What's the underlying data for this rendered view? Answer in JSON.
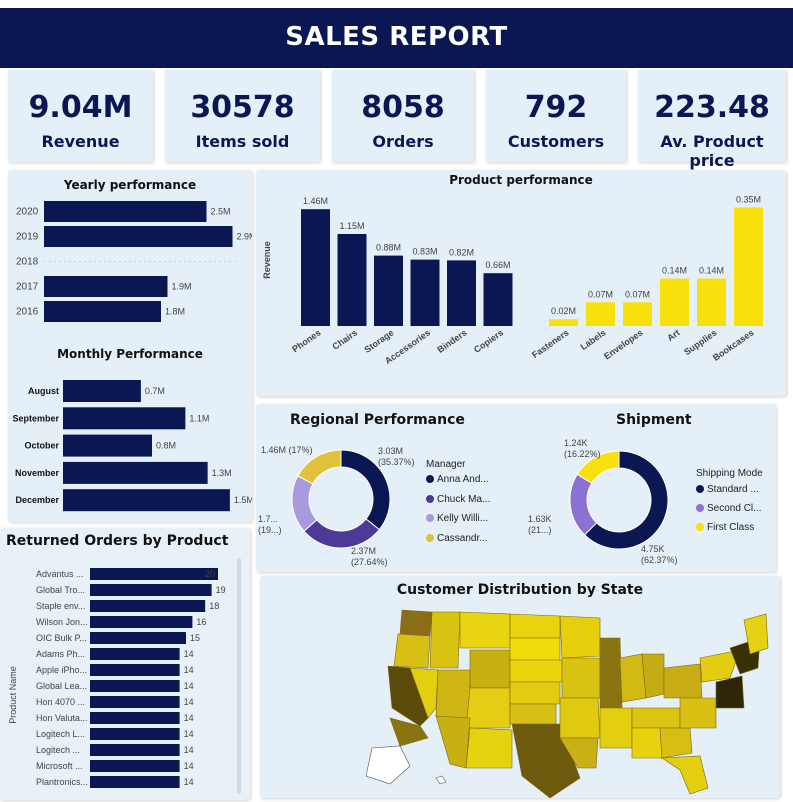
{
  "header": {
    "title": "SALES REPORT"
  },
  "kpis": [
    {
      "value": "9.04M",
      "label": "Revenue"
    },
    {
      "value": "30578",
      "label": "Items sold"
    },
    {
      "value": "8058",
      "label": "Orders"
    },
    {
      "value": "792",
      "label": "Customers"
    },
    {
      "value": "223.48",
      "label": "Av. Product price"
    }
  ],
  "yearly": {
    "title": "Yearly performance"
  },
  "monthly": {
    "title": "Monthly Performance"
  },
  "product": {
    "title": "Product performance"
  },
  "regional": {
    "title": "Regional Performance",
    "legend_title": "Manager"
  },
  "shipment": {
    "title": "Shipment",
    "legend_title": "Shipping Mode"
  },
  "returns": {
    "title": "Returned Orders by Product"
  },
  "map": {
    "title": "Customer Distribution by State"
  },
  "colors": {
    "navy": "#0b1752",
    "yellow": "#f7e00e",
    "purple_dark": "#4c3a96",
    "purple_light": "#a99ae0",
    "gold": "#e2c13a",
    "mustard": "#d8bf16"
  },
  "chart_data": [
    {
      "id": "yearly",
      "type": "bar",
      "orientation": "horizontal",
      "title": "Yearly performance",
      "categories": [
        "2020",
        "2019",
        "2018",
        "2017",
        "2016"
      ],
      "values": [
        2.5,
        2.9,
        null,
        1.9,
        1.8
      ],
      "value_labels": [
        "2.5M",
        "2.9M",
        "",
        "1.9M",
        "1.8M"
      ],
      "xlim": [
        0,
        3.0
      ]
    },
    {
      "id": "monthly",
      "type": "bar",
      "orientation": "horizontal",
      "title": "Monthly Performance",
      "categories": [
        "August",
        "September",
        "October",
        "November",
        "December"
      ],
      "values": [
        0.7,
        1.1,
        0.8,
        1.3,
        1.5
      ],
      "value_labels": [
        "0.7M",
        "1.1M",
        "0.8M",
        "1.3M",
        "1.5M"
      ],
      "xlim": [
        0,
        1.6
      ]
    },
    {
      "id": "product",
      "type": "bar",
      "title": "Product performance",
      "ylabel": "Revenue",
      "series": [
        {
          "categories": [
            "Phones",
            "Chairs",
            "Storage",
            "Accessories",
            "Binders",
            "Copiers"
          ],
          "values": [
            1.46,
            1.15,
            0.88,
            0.83,
            0.82,
            0.66
          ],
          "value_labels": [
            "1.46M",
            "1.15M",
            "0.88M",
            "0.83M",
            "0.82M",
            "0.66M"
          ],
          "ylim": [
            0,
            1.5
          ]
        },
        {
          "categories": [
            "Fasteners",
            "Labels",
            "Envelopes",
            "Art",
            "Supplies",
            "Bookcases"
          ],
          "values": [
            0.02,
            0.07,
            0.07,
            0.14,
            0.14,
            0.35
          ],
          "value_labels": [
            "0.02M",
            "0.07M",
            "0.07M",
            "0.14M",
            "0.14M",
            "0.35M"
          ],
          "ylim": [
            0,
            0.36
          ]
        }
      ]
    },
    {
      "id": "regional",
      "type": "pie",
      "title": "Regional Performance",
      "legend_title": "Manager",
      "labels": [
        "Anna And...",
        "Chuck Ma...",
        "Kelly Willi...",
        "Cassandr..."
      ],
      "values": [
        35.37,
        27.64,
        19.0,
        17.0
      ],
      "value_labels": [
        "3.03M (35.37%)",
        "2.37M (27.64%)",
        "1.7... (19...)",
        "1.46M (17%)"
      ]
    },
    {
      "id": "shipment",
      "type": "pie",
      "title": "Shipment",
      "legend_title": "Shipping Mode",
      "labels": [
        "Standard ...",
        "Second Cl...",
        "First Class"
      ],
      "values": [
        62.37,
        21.4,
        16.22
      ],
      "value_labels": [
        "4.75K (62.37%)",
        "1.63K (21...)",
        "1.24K (16.22%)"
      ]
    },
    {
      "id": "returns",
      "type": "bar",
      "orientation": "horizontal",
      "title": "Returned Orders by Product",
      "ylabel": "Product Name",
      "categories": [
        "Advantus ...",
        "Global Tro...",
        "Staple env...",
        "Wilson Jon...",
        "OIC Bulk P...",
        "Adams Ph...",
        "Apple iPho...",
        "Global Lea...",
        "Hon 4070 ...",
        "Hon Valuta...",
        "Logitech L...",
        "Logitech ...",
        "Microsoft ...",
        "Plantronics..."
      ],
      "values": [
        20,
        19,
        18,
        16,
        15,
        14,
        14,
        14,
        14,
        14,
        14,
        14,
        14,
        14
      ],
      "xlim": [
        0,
        20
      ]
    },
    {
      "id": "map",
      "type": "heatmap",
      "title": "Customer Distribution by State"
    }
  ]
}
